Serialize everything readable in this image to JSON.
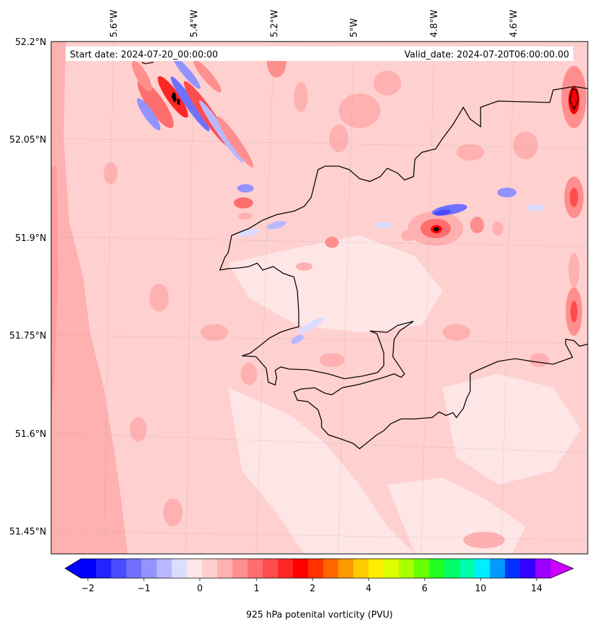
{
  "header": {
    "start_label": "Start date: 2024-07-20_00:00:00",
    "valid_label": "Valid_date: 2024-07-20T06:00:00.00"
  },
  "axes": {
    "lon_ticks": [
      "5.6°W",
      "5.4°W",
      "5.2°W",
      "5°W",
      "4.8°W",
      "4.6°W"
    ],
    "lat_ticks": [
      "52.2°N",
      "52.05°N",
      "51.9°N",
      "51.75°N",
      "51.6°N",
      "51.45°N"
    ]
  },
  "colorbar": {
    "title": "925 hPa potenital vorticity (PVU)",
    "tick_labels": [
      "−2",
      "−1",
      "0",
      "1",
      "2",
      "4",
      "6",
      "10",
      "14"
    ],
    "colors": [
      "#0000ff",
      "#2323ff",
      "#4a4aff",
      "#7070ff",
      "#9393ff",
      "#b8b8ff",
      "#dcdcff",
      "#ffe6e6",
      "#ffcfcf",
      "#ffb0b0",
      "#ff8f8f",
      "#ff6e6e",
      "#ff4c4c",
      "#ff2626",
      "#ff0000",
      "#ff3300",
      "#ff6600",
      "#ff9900",
      "#ffcc00",
      "#ffee00",
      "#ddff00",
      "#aaff00",
      "#66ff00",
      "#22ff22",
      "#00ff66",
      "#00ffaa",
      "#00eeff",
      "#0099ff",
      "#0033ff",
      "#3300ff",
      "#9900ff"
    ],
    "under_color": "#0000ff",
    "over_color": "#cc00ff"
  },
  "map": {
    "background_color": "#ffd0d0",
    "sea_west_color": "#ffb0b0",
    "coast_color": "#000000"
  }
}
